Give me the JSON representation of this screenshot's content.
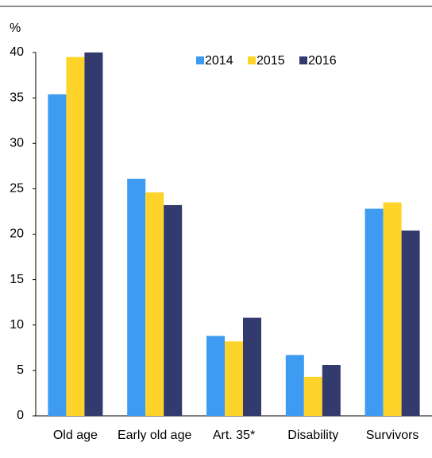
{
  "chart_data": {
    "type": "bar",
    "y_label": "%",
    "categories": [
      "Old age",
      "Early old age",
      "Art. 35*",
      "Disability",
      "Survivors"
    ],
    "series": [
      {
        "name": "2014",
        "color": "#3d9bf2",
        "values": [
          35.4,
          26.1,
          8.8,
          6.7,
          22.8
        ]
      },
      {
        "name": "2015",
        "color": "#ffd42a",
        "values": [
          39.5,
          24.6,
          8.2,
          4.3,
          23.5
        ]
      },
      {
        "name": "2016",
        "color": "#333a6d",
        "values": [
          40.0,
          23.2,
          10.8,
          5.6,
          20.4
        ]
      }
    ],
    "ylim": [
      0,
      40
    ],
    "yticks": [
      0,
      5,
      10,
      15,
      20,
      25,
      30,
      35,
      40
    ],
    "legend": "top-right"
  }
}
